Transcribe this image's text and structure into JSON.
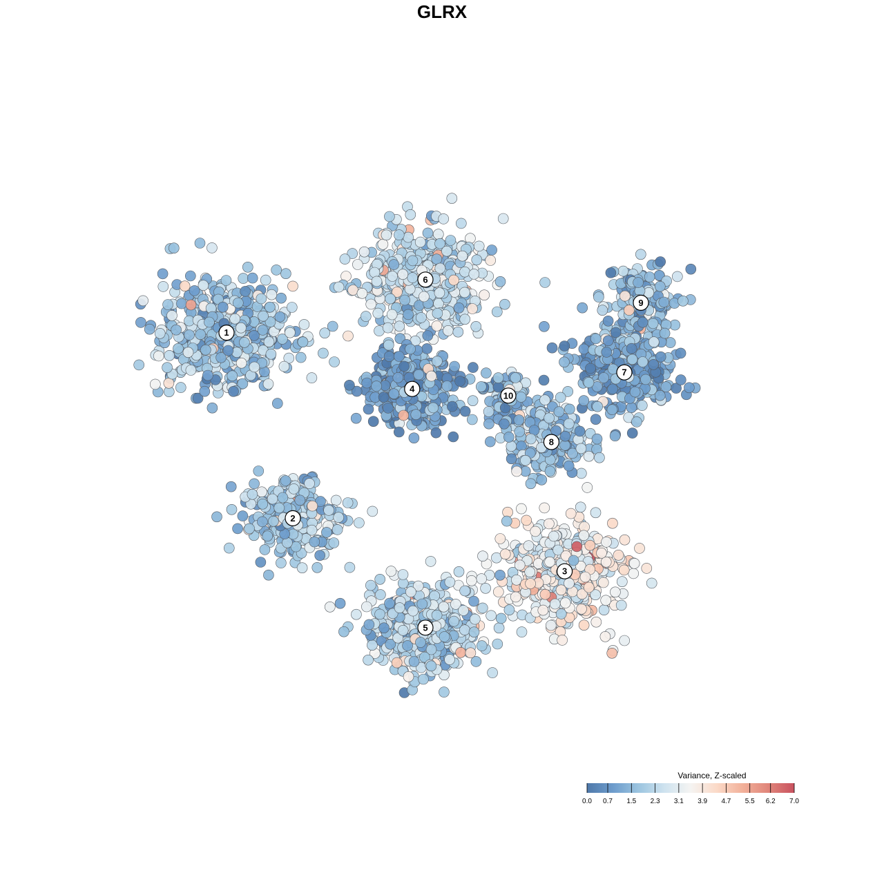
{
  "chart_data": {
    "type": "scatter",
    "title": "GLRX",
    "color_scale": {
      "title": "Variance, Z-scaled",
      "min": 0.0,
      "max": 7.0,
      "ticks": [
        "0.0",
        "0.7",
        "1.5",
        "2.3",
        "3.1",
        "3.9",
        "4.7",
        "5.5",
        "6.2",
        "7.0"
      ],
      "palette": [
        "#4f79aa",
        "#6d9ccc",
        "#9cc5e0",
        "#cfe3ef",
        "#f5f4f2",
        "#fbdac8",
        "#f2b19a",
        "#e0857a",
        "#c9525f"
      ]
    },
    "clusters": [
      {
        "label": "1",
        "cx": -0.65,
        "cy": 0.33,
        "mean": 1.8,
        "spread": 0.1,
        "n": 520
      },
      {
        "label": "6",
        "cx": -0.05,
        "cy": 0.49,
        "mean": 2.5,
        "spread": 0.09,
        "n": 480
      },
      {
        "label": "4",
        "cx": -0.09,
        "cy": 0.16,
        "mean": 0.9,
        "spread": 0.06,
        "n": 420
      },
      {
        "label": "10",
        "cx": 0.2,
        "cy": 0.14,
        "mean": 1.4,
        "spread": 0.04,
        "n": 90
      },
      {
        "label": "9",
        "cx": 0.6,
        "cy": 0.42,
        "mean": 1.6,
        "spread": 0.06,
        "n": 170
      },
      {
        "label": "7",
        "cx": 0.55,
        "cy": 0.21,
        "mean": 1.0,
        "spread": 0.07,
        "n": 280
      },
      {
        "label": "8",
        "cx": 0.33,
        "cy": 0.0,
        "mean": 1.7,
        "spread": 0.06,
        "n": 220
      },
      {
        "label": "2",
        "cx": -0.45,
        "cy": -0.23,
        "mean": 1.9,
        "spread": 0.07,
        "n": 260
      },
      {
        "label": "3",
        "cx": 0.37,
        "cy": -0.39,
        "mean": 3.3,
        "spread": 0.09,
        "n": 430
      },
      {
        "label": "5",
        "cx": -0.05,
        "cy": -0.56,
        "mean": 2.1,
        "spread": 0.08,
        "n": 470
      }
    ]
  }
}
